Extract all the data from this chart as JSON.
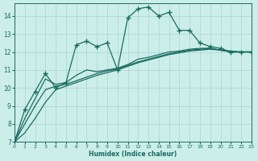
{
  "xlabel": "Humidex (Indice chaleur)",
  "background_color": "#cceee9",
  "grid_color": "#aad5d0",
  "line_color": "#1a6b60",
  "xlim": [
    0,
    23
  ],
  "ylim": [
    7,
    14.7
  ],
  "yticks": [
    7,
    8,
    9,
    10,
    11,
    12,
    13,
    14
  ],
  "xticks": [
    0,
    1,
    2,
    3,
    4,
    5,
    6,
    7,
    8,
    9,
    10,
    11,
    12,
    13,
    14,
    15,
    16,
    17,
    18,
    19,
    20,
    21,
    22,
    23
  ],
  "curve_marked_x": [
    0,
    1,
    2,
    3,
    4,
    5,
    6,
    7,
    8,
    9,
    10,
    11,
    12,
    13,
    14,
    15,
    16,
    17,
    18,
    19,
    20,
    21,
    22,
    23
  ],
  "curve_marked_y": [
    7.0,
    8.8,
    9.8,
    10.8,
    10.0,
    10.3,
    12.4,
    12.6,
    12.3,
    12.5,
    11.0,
    13.9,
    14.4,
    14.5,
    14.0,
    14.2,
    13.2,
    13.2,
    12.5,
    12.3,
    12.2,
    12.0,
    12.0,
    12.0
  ],
  "curve_smooth1_x": [
    0,
    1,
    2,
    3,
    4,
    5,
    6,
    7,
    8,
    9,
    10,
    11,
    12,
    13,
    14,
    15,
    16,
    17,
    18,
    19,
    20,
    21,
    22,
    23
  ],
  "curve_smooth1_y": [
    7.0,
    8.3,
    9.4,
    10.5,
    10.2,
    10.3,
    10.7,
    11.0,
    10.9,
    11.0,
    11.1,
    11.3,
    11.6,
    11.7,
    11.85,
    12.0,
    12.05,
    12.15,
    12.2,
    12.2,
    12.1,
    12.05,
    12.0,
    12.0
  ],
  "curve_smooth2_x": [
    0,
    1,
    2,
    3,
    4,
    5,
    6,
    7,
    8,
    9,
    10,
    11,
    12,
    13,
    14,
    15,
    16,
    17,
    18,
    19,
    20,
    21,
    22,
    23
  ],
  "curve_smooth2_y": [
    7.0,
    8.0,
    9.0,
    9.9,
    10.1,
    10.2,
    10.4,
    10.6,
    10.8,
    10.95,
    11.05,
    11.25,
    11.45,
    11.6,
    11.75,
    11.9,
    12.0,
    12.1,
    12.15,
    12.2,
    12.1,
    12.0,
    12.0,
    12.0
  ],
  "curve_smooth3_x": [
    0,
    1,
    2,
    3,
    4,
    5,
    6,
    7,
    8,
    9,
    10,
    11,
    12,
    13,
    14,
    15,
    16,
    17,
    18,
    19,
    20,
    21,
    22,
    23
  ],
  "curve_smooth3_y": [
    7.0,
    7.5,
    8.3,
    9.2,
    9.9,
    10.1,
    10.3,
    10.5,
    10.7,
    10.85,
    11.0,
    11.2,
    11.4,
    11.55,
    11.7,
    11.85,
    11.95,
    12.05,
    12.1,
    12.15,
    12.1,
    12.0,
    12.0,
    12.0
  ]
}
